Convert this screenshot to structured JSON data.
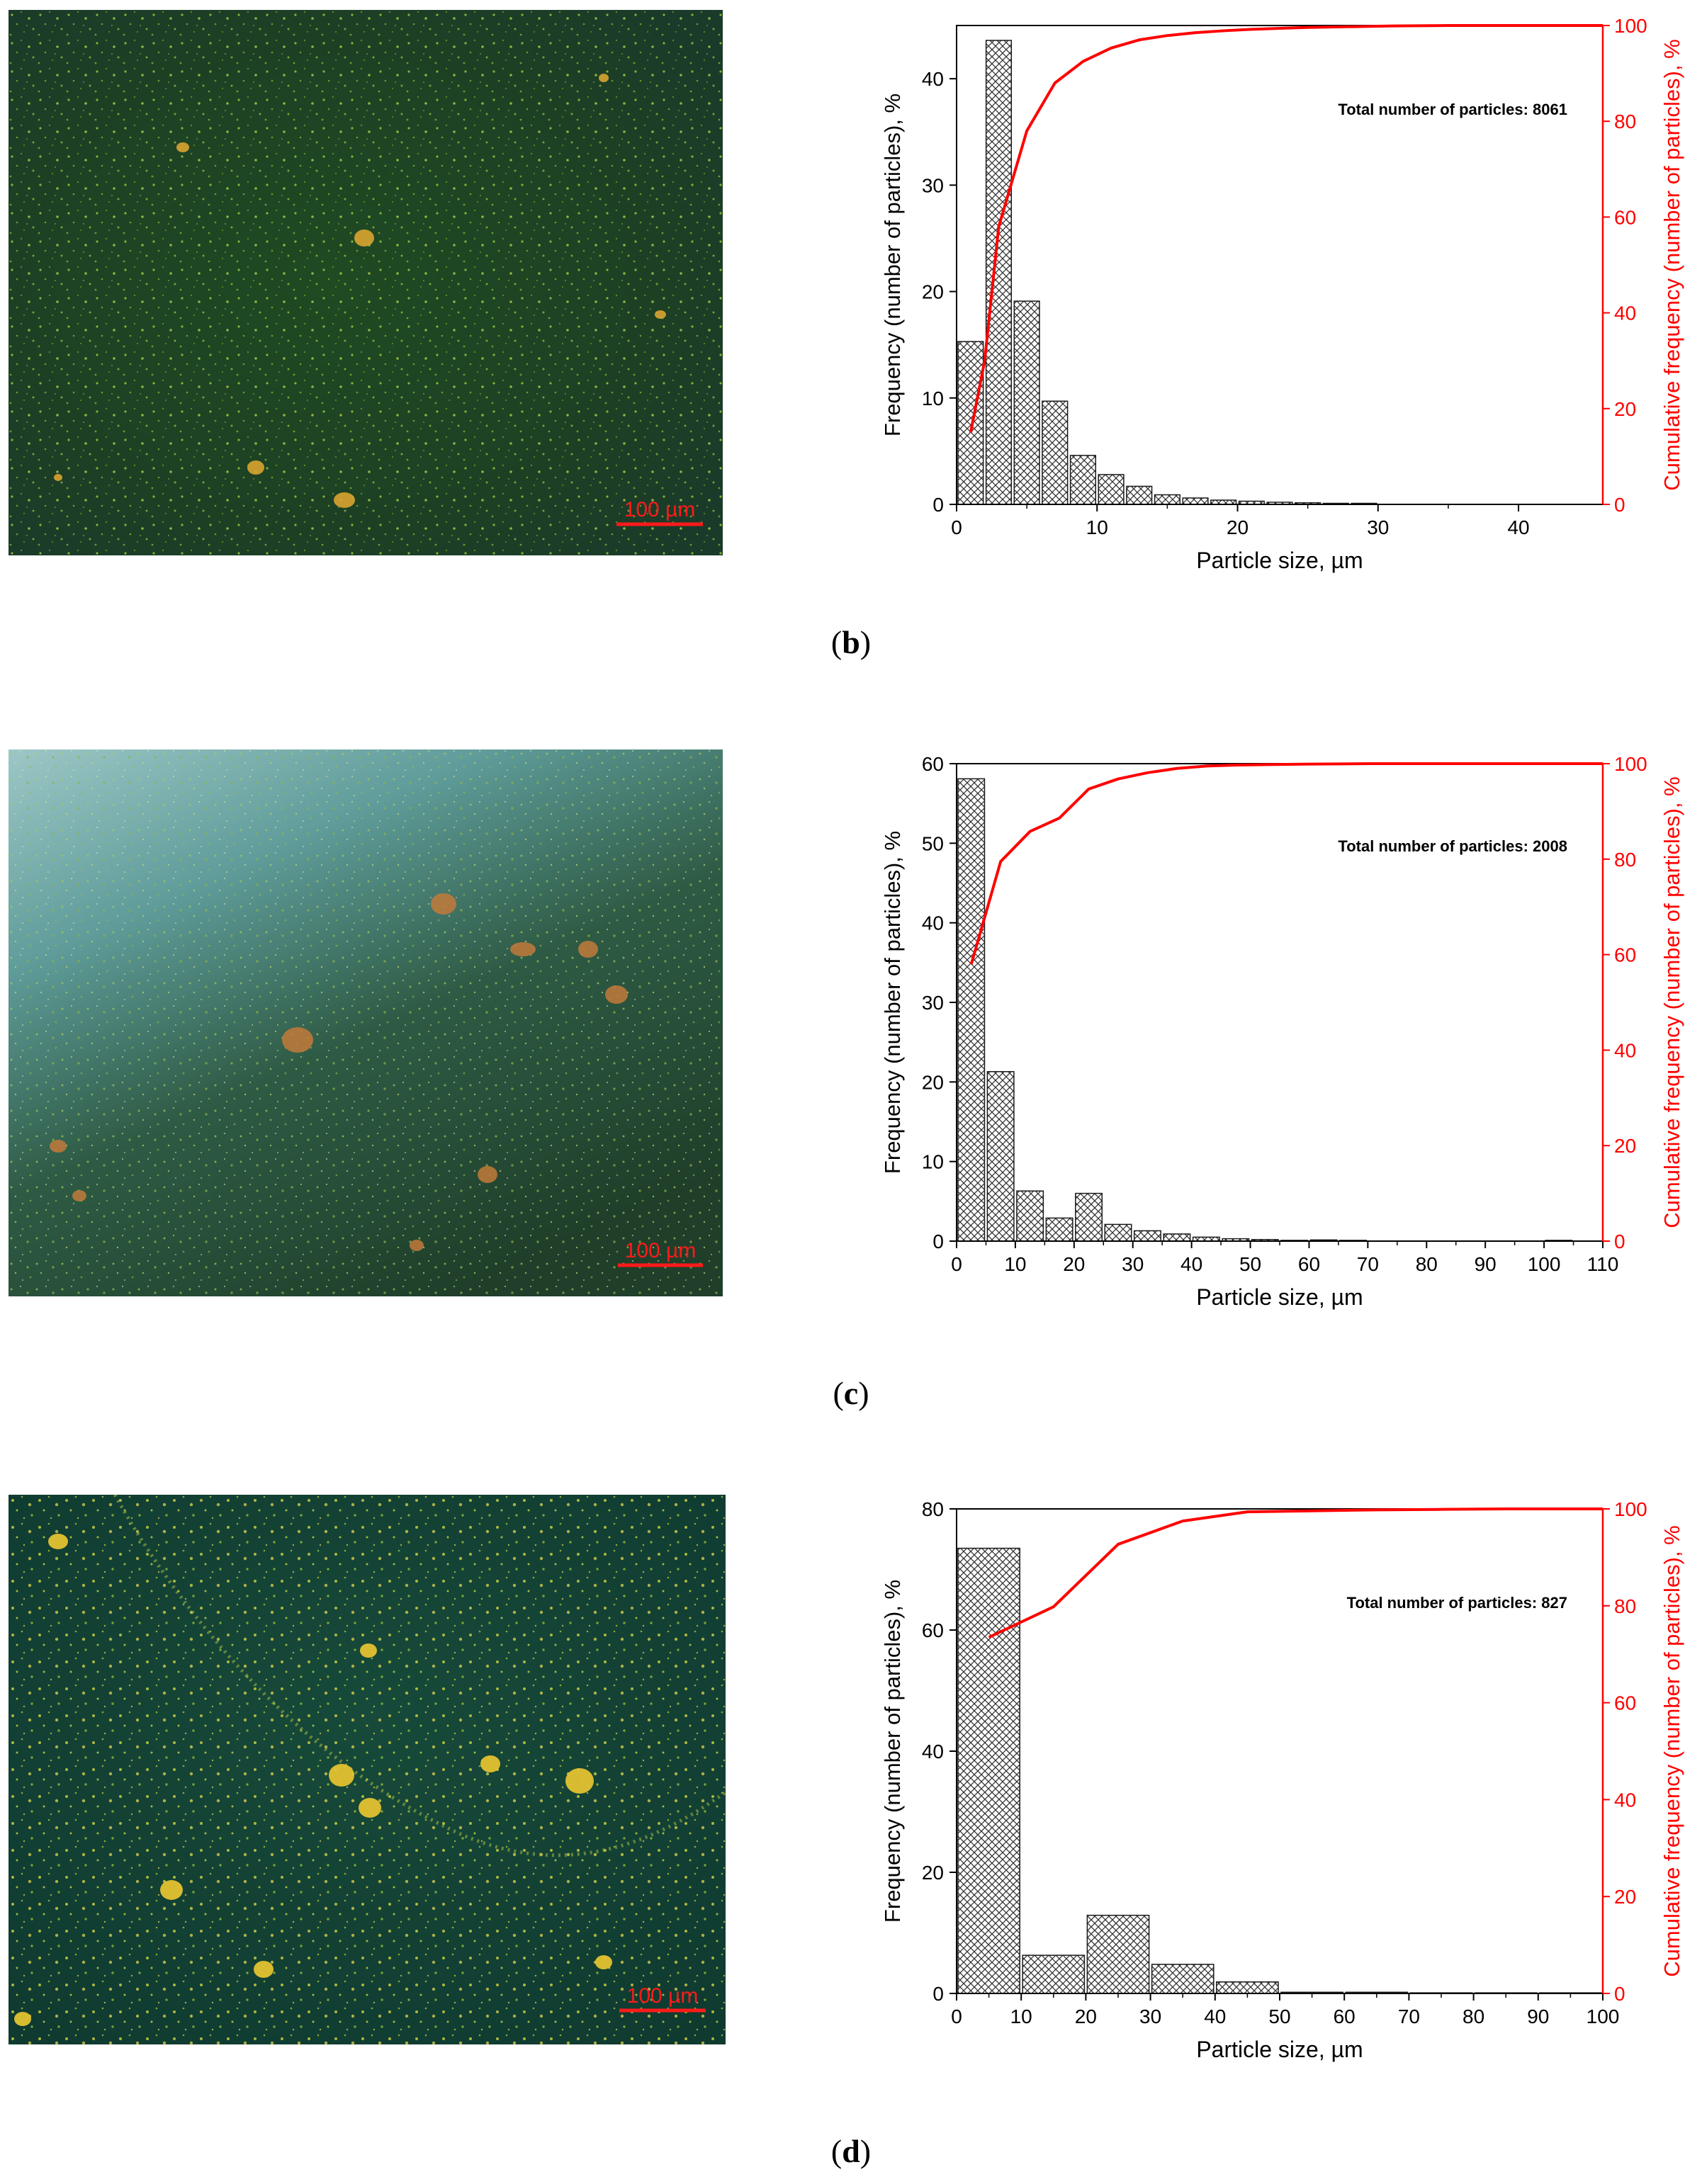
{
  "colors": {
    "bar_stroke": "#1a1a1a",
    "hatch": "#333333",
    "cumulative": "#ff0000",
    "axis": "#000000",
    "scalebar": "#ff1a1a"
  },
  "panels": [
    {
      "id": "b",
      "caption_letter": "b",
      "caption_open": "(",
      "caption_close": ")",
      "micrograph": {
        "scale_label": "100 µm",
        "tone": "green",
        "image": "particle-micrograph"
      },
      "annotation": "Total number of particles: 8061",
      "chart_data": {
        "type": "bar",
        "xlabel": "Particle size, µm",
        "ylabel": "Frequency (number of particles), %",
        "y2label": "Cumulative frequency (number of particles), %",
        "xlim": [
          0,
          46
        ],
        "ylim": [
          0,
          45
        ],
        "y2lim": [
          0,
          100
        ],
        "xticks": [
          0,
          10,
          20,
          30,
          40
        ],
        "yticks": [
          0,
          10,
          20,
          30,
          40
        ],
        "y2ticks": [
          0,
          20,
          40,
          60,
          80,
          100
        ],
        "bin_width": 2,
        "bins": [
          1,
          3,
          5,
          7,
          9,
          11,
          13,
          15,
          17,
          19,
          21,
          23,
          25,
          27,
          29
        ],
        "values": [
          15.3,
          43.6,
          19.1,
          9.7,
          4.6,
          2.8,
          1.7,
          0.9,
          0.6,
          0.4,
          0.3,
          0.2,
          0.15,
          0.1,
          0.1
        ],
        "cumulative": {
          "x": [
            1,
            2,
            3,
            4,
            5,
            7,
            9,
            11,
            13,
            15,
            17,
            19,
            21,
            23,
            25,
            27,
            29,
            31,
            35,
            40,
            46
          ],
          "y": [
            15,
            30,
            58,
            68,
            78,
            88,
            92.5,
            95.3,
            97,
            97.9,
            98.5,
            98.9,
            99.2,
            99.4,
            99.6,
            99.7,
            99.8,
            99.9,
            100,
            100,
            100
          ]
        }
      }
    },
    {
      "id": "c",
      "caption_letter": "c",
      "caption_open": "(",
      "caption_close": ")",
      "micrograph": {
        "scale_label": "100 µm",
        "tone": "teal",
        "image": "particle-micrograph"
      },
      "annotation": "Total number of particles: 2008",
      "chart_data": {
        "type": "bar",
        "xlabel": "Particle size, µm",
        "ylabel": "Frequency (number of particles), %",
        "y2label": "Cumulative frequency (number of particles), %",
        "xlim": [
          0,
          110
        ],
        "ylim": [
          0,
          60
        ],
        "y2lim": [
          0,
          100
        ],
        "xticks": [
          0,
          10,
          20,
          30,
          40,
          50,
          60,
          70,
          80,
          90,
          100,
          110
        ],
        "yticks": [
          0,
          10,
          20,
          30,
          40,
          50,
          60
        ],
        "y2ticks": [
          0,
          20,
          40,
          60,
          80,
          100
        ],
        "bin_width": 5,
        "bins": [
          2.5,
          7.5,
          12.5,
          17.5,
          22.5,
          27.5,
          32.5,
          37.5,
          42.5,
          47.5,
          52.5,
          57.5,
          62.5,
          67.5,
          102.5
        ],
        "values": [
          58.1,
          21.3,
          6.3,
          2.9,
          6.0,
          2.1,
          1.3,
          0.9,
          0.5,
          0.3,
          0.2,
          0.1,
          0.15,
          0.1,
          0.1
        ],
        "cumulative": {
          "x": [
            2.5,
            7.5,
            12.5,
            17.5,
            22.5,
            27.5,
            32.5,
            37.5,
            42.5,
            47.5,
            52.5,
            60,
            70,
            80,
            90,
            100,
            110
          ],
          "y": [
            58,
            79.5,
            85.8,
            88.6,
            94.7,
            96.8,
            98.1,
            99,
            99.5,
            99.7,
            99.8,
            99.9,
            100,
            100,
            100,
            100,
            100
          ]
        }
      }
    },
    {
      "id": "d",
      "caption_letter": "d",
      "caption_open": "(",
      "caption_close": ")",
      "micrograph": {
        "scale_label": "100 µm",
        "tone": "yellow",
        "image": "particle-micrograph"
      },
      "annotation": "Total number of particles: 827",
      "chart_data": {
        "type": "bar",
        "xlabel": "Particle size, µm",
        "ylabel": "Frequency (number of particles), %",
        "y2label": "Cumulative frequency (number of particles), %",
        "xlim": [
          0,
          100
        ],
        "ylim": [
          0,
          80
        ],
        "y2lim": [
          0,
          100
        ],
        "xticks": [
          0,
          10,
          20,
          30,
          40,
          50,
          60,
          70,
          80,
          90,
          100
        ],
        "yticks": [
          0,
          20,
          40,
          60,
          80
        ],
        "y2ticks": [
          0,
          20,
          40,
          60,
          80,
          100
        ],
        "bin_width": 10,
        "bins": [
          5,
          15,
          25,
          35,
          45,
          55,
          65,
          75,
          85,
          95
        ],
        "values": [
          73.5,
          6.3,
          12.9,
          4.8,
          1.9,
          0.2,
          0.2,
          0.1,
          0.1,
          0.1
        ],
        "cumulative": {
          "x": [
            5,
            15,
            25,
            35,
            45,
            55,
            65,
            75,
            85,
            95,
            100
          ],
          "y": [
            73.5,
            79.8,
            92.7,
            97.5,
            99.4,
            99.6,
            99.8,
            99.9,
            100,
            100,
            100
          ]
        }
      }
    }
  ]
}
